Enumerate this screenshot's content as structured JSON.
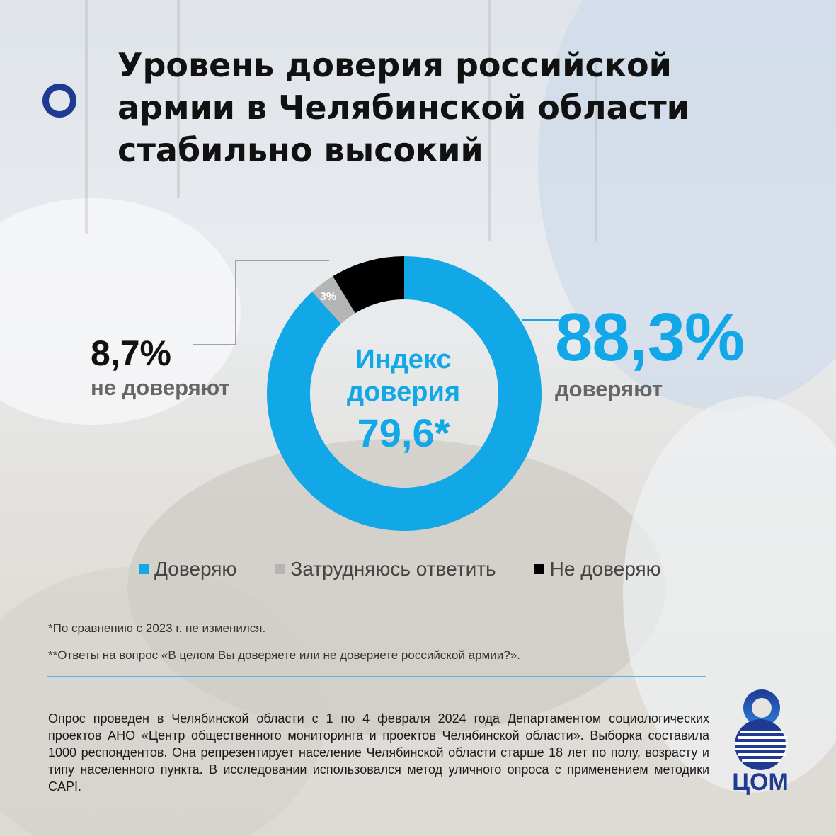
{
  "title": {
    "lines": [
      "Уровень доверия российской",
      "армии в Челябинской области",
      "стабильно высокий"
    ]
  },
  "colors": {
    "trust": "#12a8e8",
    "undecided": "#b5b5b5",
    "distrust": "#000000",
    "accent": "#1f3a93"
  },
  "chart_data": {
    "type": "pie",
    "donut": true,
    "categories": [
      "Доверяю",
      "Затрудняюсь ответить",
      "Не доверяю"
    ],
    "values": [
      88.3,
      3.0,
      8.7
    ],
    "data_labels": {
      "trust_value": "88,3%",
      "trust_caption": "доверяют",
      "distrust_value": "8,7%",
      "distrust_caption": "не доверяют",
      "undecided_value": "3%"
    },
    "center_label": {
      "line1": "Индекс",
      "line2": "доверия",
      "value": "79,6*"
    },
    "legend": {
      "placement": "bottom",
      "items": [
        {
          "label": "Доверяю",
          "color": "#12a8e8"
        },
        {
          "label": "Затрудняюсь ответить",
          "color": "#b5b5b5"
        },
        {
          "label": "Не доверяю",
          "color": "#000000"
        }
      ]
    }
  },
  "notes": {
    "note1": "*По сравнению с 2023 г. не изменился.",
    "note2": "**Ответы на вопрос «В целом Вы доверяете или не доверяете российской армии?»."
  },
  "methodology": "Опрос проведен в Челябинской области с 1 по 4 февраля 2024 года Департаментом социологических проектов АНО «Центр общественного мониторинга и проектов Челябинской области». Выборка составила 1000 респондентов. Она репрезентирует население Челябинской области старше 18 лет по полу, возрасту и типу населенного пункта. В исследовании использовался метод уличного опроса с применением методики CAPI.",
  "logo": {
    "text": "ЦОМ"
  }
}
